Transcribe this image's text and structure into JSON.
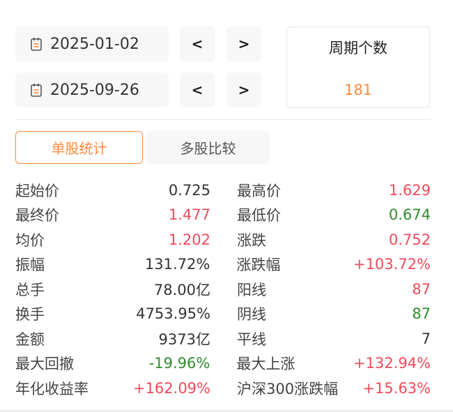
{
  "dates": {
    "start": "2025-01-02",
    "end": "2025-09-26",
    "prev_label": "<",
    "next_label": ">"
  },
  "period": {
    "title": "周期个数",
    "value": "181"
  },
  "tabs": [
    {
      "label": "单股统计",
      "active": true
    },
    {
      "label": "多股比较",
      "active": false
    }
  ],
  "colors": {
    "accent": "#ff8a3d",
    "up": "#f04a5a",
    "down": "#2e8b2e",
    "neutral": "#333333"
  },
  "stats": [
    {
      "left_label": "起始价",
      "left_value": "0.725",
      "left_color": "#333333",
      "right_label": "最高价",
      "right_value": "1.629",
      "right_color": "#f04a5a"
    },
    {
      "left_label": "最终价",
      "left_value": "1.477",
      "left_color": "#f04a5a",
      "right_label": "最低价",
      "right_value": "0.674",
      "right_color": "#2e8b2e"
    },
    {
      "left_label": "均价",
      "left_value": "1.202",
      "left_color": "#f04a5a",
      "right_label": "涨跌",
      "right_value": "0.752",
      "right_color": "#f04a5a"
    },
    {
      "left_label": "振幅",
      "left_value": "131.72%",
      "left_color": "#333333",
      "right_label": "涨跌幅",
      "right_value": "+103.72%",
      "right_color": "#f04a5a"
    },
    {
      "left_label": "总手",
      "left_value": "78.00亿",
      "left_color": "#333333",
      "right_label": "阳线",
      "right_value": "87",
      "right_color": "#f04a5a"
    },
    {
      "left_label": "换手",
      "left_value": "4753.95%",
      "left_color": "#333333",
      "right_label": "阴线",
      "right_value": "87",
      "right_color": "#2e8b2e"
    },
    {
      "left_label": "金额",
      "left_value": "9373亿",
      "left_color": "#333333",
      "right_label": "平线",
      "right_value": "7",
      "right_color": "#333333"
    },
    {
      "left_label": "最大回撤",
      "left_value": "-19.96%",
      "left_color": "#2e8b2e",
      "right_label": "最大上涨",
      "right_value": "+132.94%",
      "right_color": "#f04a5a"
    },
    {
      "left_label": "年化收益率",
      "left_value": "+162.09%",
      "left_color": "#f04a5a",
      "right_label": "沪深300涨跌幅",
      "right_value": "+15.63%",
      "right_color": "#f04a5a"
    }
  ]
}
